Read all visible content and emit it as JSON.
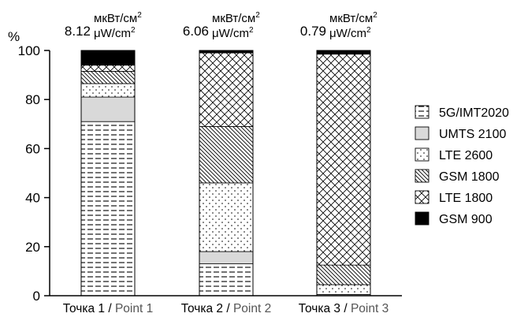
{
  "chart_data": {
    "type": "bar",
    "stacked": true,
    "ylabel": "%",
    "ylim": [
      0,
      100
    ],
    "yticks": [
      "0",
      "20",
      "40",
      "60",
      "80",
      "100"
    ],
    "categories": [
      {
        "ru": "Точка 1",
        "sep": " / ",
        "en": "Point 1"
      },
      {
        "ru": "Точка 2",
        "sep": " / ",
        "en": "Point 2"
      },
      {
        "ru": "Точка 3",
        "sep": " / ",
        "en": "Point 3"
      }
    ],
    "totals": [
      {
        "value": "8.12",
        "unit_ru": "мкВт/см",
        "unit_en": "μW/cm",
        "sup": "2"
      },
      {
        "value": "6.06",
        "unit_ru": "мкВт/см",
        "unit_en": "μW/cm",
        "sup": "2"
      },
      {
        "value": "0.79",
        "unit_ru": "мкВт/см",
        "unit_en": "μW/cm",
        "sup": "2"
      }
    ],
    "series": [
      {
        "name": "5G/IMT2020",
        "pattern": "dash",
        "values": [
          71,
          13,
          0.5
        ]
      },
      {
        "name": "UMTS 2100",
        "pattern": "gray",
        "values": [
          10,
          5,
          0
        ]
      },
      {
        "name": "LTE 2600",
        "pattern": "dots",
        "values": [
          5.5,
          28,
          4
        ]
      },
      {
        "name": "GSM 1800",
        "pattern": "diag",
        "values": [
          5,
          23,
          8
        ]
      },
      {
        "name": "LTE 1800",
        "pattern": "cross",
        "values": [
          2.5,
          30,
          86
        ]
      },
      {
        "name": "GSM 900",
        "pattern": "black",
        "values": [
          6,
          1,
          1.5
        ]
      }
    ],
    "grid": false,
    "legend_position": "right"
  }
}
